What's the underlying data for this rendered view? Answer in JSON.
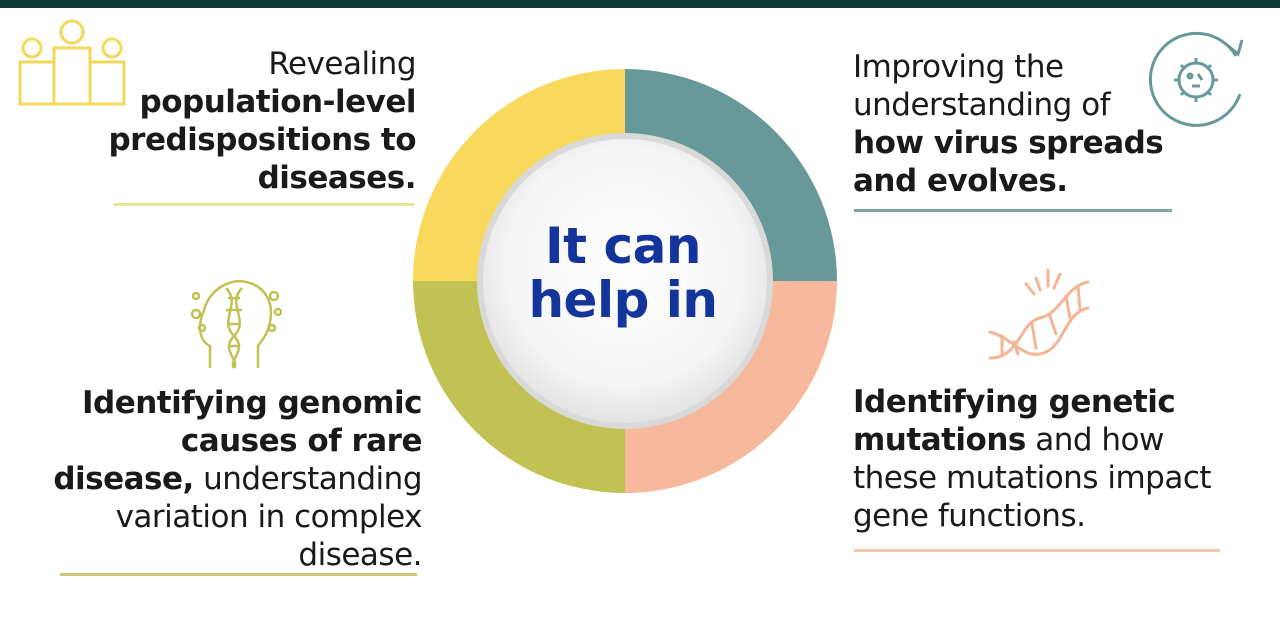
{
  "colors": {
    "top_bar": "#0f3a38",
    "yellow": "#f8d95c",
    "teal": "#68999a",
    "olive": "#c2c153",
    "peach": "#f6b99b",
    "center_text": "#13349a",
    "line_yellow": "#efe29a",
    "line_teal": "#7da7a7",
    "line_olive": "#cdc877",
    "line_peach": "#f6c7ae"
  },
  "center": {
    "line1": "It can",
    "line2": "help in"
  },
  "top_left": {
    "icon": "people-group-icon",
    "normal1": "Revealing",
    "bold1": "population-level",
    "bold2": "predispositions to",
    "bold3": "diseases."
  },
  "bottom_left": {
    "icon": "dna-head-icon",
    "bold1": "Identifying genomic",
    "bold2": "causes of rare",
    "bold3": "disease,",
    "normal1": " understanding",
    "normal2": "variation in complex",
    "normal3": "disease."
  },
  "top_right": {
    "icon": "virus-cycle-icon",
    "normal1": "Improving the",
    "normal2": "understanding of",
    "bold1": "how virus spreads",
    "bold2": "and evolves."
  },
  "bottom_right": {
    "icon": "dna-helix-icon",
    "bold1": "Identifying genetic",
    "bold2": "mutations",
    "normal1": " and how",
    "normal2": "these mutations impact",
    "normal3": "gene functions."
  }
}
